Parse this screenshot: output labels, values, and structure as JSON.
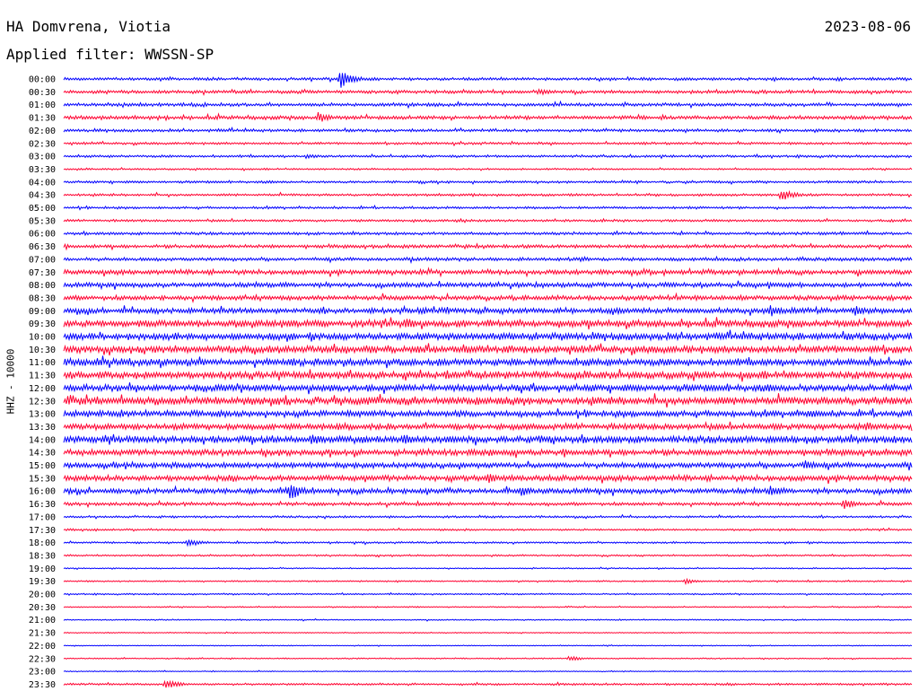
{
  "header": {
    "station": "HA Domvrena, Viotia",
    "date": "2023-08-06",
    "filter_label": "Applied filter: WWSSN-SP"
  },
  "colors": {
    "odd_row": "#0000ff",
    "even_row": "#ff0030",
    "background": "#ffffff"
  },
  "chart_data": {
    "type": "line",
    "title": "",
    "ylabel": "HHZ - 10000",
    "xlabel": "",
    "grid": false,
    "legend": "none",
    "row_interval_minutes": 30,
    "row_labels": [
      "00:00",
      "00:30",
      "01:00",
      "01:30",
      "02:00",
      "02:30",
      "03:00",
      "03:30",
      "04:00",
      "04:30",
      "05:00",
      "05:30",
      "06:00",
      "06:30",
      "07:00",
      "07:30",
      "08:00",
      "08:30",
      "09:00",
      "09:30",
      "10:00",
      "10:30",
      "11:00",
      "11:30",
      "12:00",
      "12:30",
      "13:00",
      "13:30",
      "14:00",
      "14:30",
      "15:00",
      "15:30",
      "16:00",
      "16:30",
      "17:00",
      "17:30",
      "18:00",
      "18:30",
      "19:00",
      "19:30",
      "20:00",
      "20:30",
      "21:00",
      "21:30",
      "22:00",
      "22:30",
      "23:00",
      "23:30"
    ],
    "trace_activity": [
      1.2,
      1.4,
      1.4,
      1.6,
      1.2,
      1.0,
      1.0,
      0.7,
      1.0,
      1.0,
      1.0,
      1.0,
      1.2,
      1.5,
      1.5,
      2.0,
      2.0,
      2.0,
      2.4,
      3.0,
      3.0,
      3.2,
      3.0,
      3.0,
      3.0,
      3.4,
      2.6,
      2.6,
      3.0,
      2.6,
      2.4,
      2.4,
      2.2,
      1.4,
      0.9,
      0.8,
      0.8,
      0.7,
      0.5,
      0.6,
      0.6,
      0.5,
      0.5,
      0.4,
      0.4,
      0.5,
      0.4,
      0.9
    ],
    "events": [
      {
        "row": 0,
        "minute": 9.8,
        "amplitude": 10
      },
      {
        "row": 1,
        "minute": 16.8,
        "amplitude": 4
      },
      {
        "row": 3,
        "minute": 9.0,
        "amplitude": 6
      },
      {
        "row": 6,
        "minute": 8.6,
        "amplitude": 3
      },
      {
        "row": 9,
        "minute": 25.4,
        "amplitude": 7
      },
      {
        "row": 17,
        "minute": 29.2,
        "amplitude": 3
      },
      {
        "row": 18,
        "minute": 25.0,
        "amplitude": 7
      },
      {
        "row": 18,
        "minute": 28.0,
        "amplitude": 6
      },
      {
        "row": 19,
        "minute": 12.1,
        "amplitude": 7
      },
      {
        "row": 22,
        "minute": 1.2,
        "amplitude": 5
      },
      {
        "row": 26,
        "minute": 26.4,
        "amplitude": 5
      },
      {
        "row": 27,
        "minute": 28.4,
        "amplitude": 6
      },
      {
        "row": 28,
        "minute": 8.8,
        "amplitude": 7
      },
      {
        "row": 28,
        "minute": 12.0,
        "amplitude": 7
      },
      {
        "row": 30,
        "minute": 26.2,
        "amplitude": 6
      },
      {
        "row": 31,
        "minute": 15.0,
        "amplitude": 6
      },
      {
        "row": 32,
        "minute": 8.0,
        "amplitude": 11
      },
      {
        "row": 32,
        "minute": 16.2,
        "amplitude": 6
      },
      {
        "row": 32,
        "minute": 25.0,
        "amplitude": 6
      },
      {
        "row": 33,
        "minute": 27.6,
        "amplitude": 6
      },
      {
        "row": 36,
        "minute": 4.4,
        "amplitude": 5
      },
      {
        "row": 39,
        "minute": 22.0,
        "amplitude": 3
      },
      {
        "row": 45,
        "minute": 17.9,
        "amplitude": 3
      },
      {
        "row": 47,
        "minute": 3.6,
        "amplitude": 4
      },
      {
        "row": 47,
        "minute": 3.8,
        "amplitude": 4
      }
    ]
  }
}
